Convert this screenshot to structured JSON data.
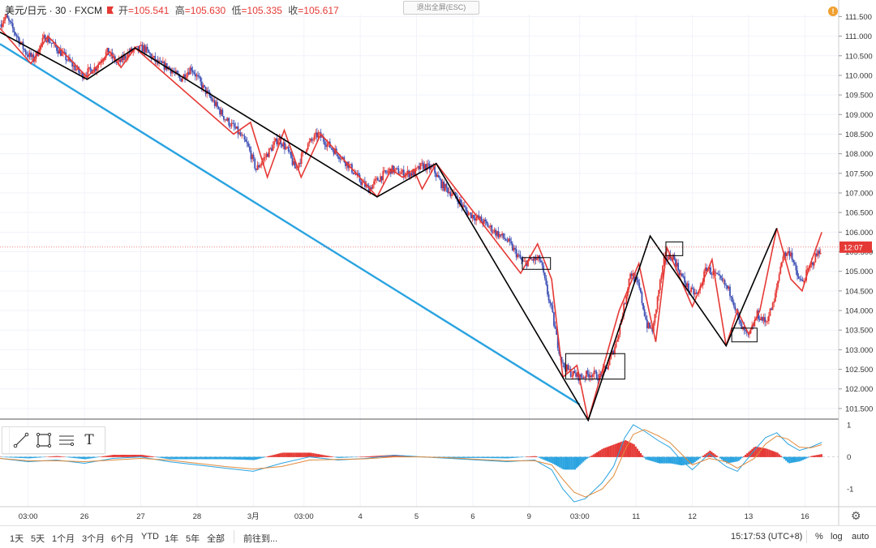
{
  "header": {
    "symbol": "美元/日元 · 30 · FXCM",
    "open_label": "开",
    "open": "=105.541",
    "high_label": "高",
    "high": "=105.630",
    "low_label": "低",
    "low": "=105.335",
    "close_label": "收",
    "close": "=105.617"
  },
  "exit_fullscreen_label": "退出全屏(ESC)",
  "alert_icon_text": "!",
  "price_tag": "12:07",
  "colors": {
    "bull": "#e53935",
    "bear": "#3f51b5",
    "trend": "#29a3e0",
    "wave": "#000000",
    "subwave": "#e53935"
  },
  "chart_data": {
    "type": "candlestick",
    "y_axis": {
      "min": 101.25,
      "max": 111.55,
      "ticks": [
        "111.500",
        "111.000",
        "110.500",
        "110.000",
        "109.500",
        "109.000",
        "108.500",
        "108.000",
        "107.500",
        "107.000",
        "106.500",
        "106.000",
        "105.500",
        "105.000",
        "104.500",
        "104.000",
        "103.500",
        "103.000",
        "102.500",
        "102.000",
        "101.500"
      ]
    },
    "x_axis": {
      "ticks": [
        {
          "label": "03:00",
          "pos": 0.5
        },
        {
          "label": "26",
          "pos": 1.5
        },
        {
          "label": "27",
          "pos": 2.5
        },
        {
          "label": "28",
          "pos": 3.5
        },
        {
          "label": "3月",
          "pos": 4.5
        },
        {
          "label": "03:00",
          "pos": 5.4
        },
        {
          "label": "4",
          "pos": 6.4
        },
        {
          "label": "5",
          "pos": 7.4
        },
        {
          "label": "6",
          "pos": 8.4
        },
        {
          "label": "9",
          "pos": 9.4
        },
        {
          "label": "03:00",
          "pos": 10.3
        },
        {
          "label": "11",
          "pos": 11.3
        },
        {
          "label": "12",
          "pos": 12.3
        },
        {
          "label": "13",
          "pos": 13.3
        },
        {
          "label": "16",
          "pos": 14.3
        }
      ]
    },
    "x_max": 14.9,
    "last_price": 105.617,
    "price_path": [
      [
        0.0,
        111.3
      ],
      [
        0.1,
        111.5
      ],
      [
        0.3,
        111.0
      ],
      [
        0.45,
        110.6
      ],
      [
        0.6,
        110.4
      ],
      [
        0.8,
        111.0
      ],
      [
        1.0,
        110.7
      ],
      [
        1.2,
        110.4
      ],
      [
        1.45,
        110.0
      ],
      [
        1.7,
        110.2
      ],
      [
        1.9,
        110.6
      ],
      [
        2.1,
        110.3
      ],
      [
        2.3,
        110.6
      ],
      [
        2.55,
        110.7
      ],
      [
        2.8,
        110.3
      ],
      [
        3.0,
        110.2
      ],
      [
        3.2,
        109.9
      ],
      [
        3.4,
        110.2
      ],
      [
        3.6,
        109.7
      ],
      [
        3.8,
        109.3
      ],
      [
        4.0,
        108.9
      ],
      [
        4.2,
        108.6
      ],
      [
        4.4,
        108.2
      ],
      [
        4.55,
        107.6
      ],
      [
        4.75,
        108.0
      ],
      [
        4.95,
        108.4
      ],
      [
        5.1,
        108.1
      ],
      [
        5.25,
        107.6
      ],
      [
        5.45,
        108.2
      ],
      [
        5.65,
        108.5
      ],
      [
        5.85,
        108.2
      ],
      [
        6.0,
        108.0
      ],
      [
        6.2,
        107.7
      ],
      [
        6.4,
        107.3
      ],
      [
        6.55,
        107.1
      ],
      [
        6.75,
        107.4
      ],
      [
        6.95,
        107.6
      ],
      [
        7.15,
        107.5
      ],
      [
        7.35,
        107.5
      ],
      [
        7.5,
        107.7
      ],
      [
        7.7,
        107.6
      ],
      [
        7.85,
        107.2
      ],
      [
        8.1,
        106.9
      ],
      [
        8.3,
        106.5
      ],
      [
        8.55,
        106.3
      ],
      [
        8.8,
        106.0
      ],
      [
        9.0,
        105.8
      ],
      [
        9.15,
        105.5
      ],
      [
        9.3,
        105.2
      ],
      [
        9.45,
        105.3
      ],
      [
        9.6,
        105.3
      ],
      [
        9.7,
        104.6
      ],
      [
        9.8,
        104.0
      ],
      [
        9.9,
        103.2
      ],
      [
        10.0,
        102.6
      ],
      [
        10.15,
        102.4
      ],
      [
        10.3,
        102.3
      ],
      [
        10.5,
        102.4
      ],
      [
        10.65,
        102.3
      ],
      [
        10.8,
        102.6
      ],
      [
        10.95,
        103.2
      ],
      [
        11.1,
        104.2
      ],
      [
        11.2,
        105.0
      ],
      [
        11.35,
        104.6
      ],
      [
        11.5,
        103.6
      ],
      [
        11.6,
        103.5
      ],
      [
        11.7,
        104.5
      ],
      [
        11.8,
        105.3
      ],
      [
        11.95,
        105.4
      ],
      [
        12.1,
        104.9
      ],
      [
        12.25,
        104.5
      ],
      [
        12.4,
        104.4
      ],
      [
        12.55,
        105.1
      ],
      [
        12.7,
        104.9
      ],
      [
        12.85,
        104.7
      ],
      [
        13.0,
        104.4
      ],
      [
        13.15,
        103.6
      ],
      [
        13.3,
        103.3
      ],
      [
        13.45,
        103.9
      ],
      [
        13.6,
        103.7
      ],
      [
        13.75,
        104.2
      ],
      [
        13.9,
        105.4
      ],
      [
        14.05,
        105.5
      ],
      [
        14.15,
        104.9
      ],
      [
        14.25,
        104.7
      ],
      [
        14.35,
        105.0
      ],
      [
        14.5,
        105.4
      ],
      [
        14.6,
        105.62
      ]
    ],
    "trend_line": [
      [
        0.0,
        110.8
      ],
      [
        10.3,
        101.6
      ]
    ],
    "wave_lines": [
      [
        0.0,
        111.1
      ],
      [
        1.55,
        109.9
      ],
      [
        2.4,
        110.7
      ],
      [
        6.7,
        106.9
      ],
      [
        7.75,
        107.75
      ],
      [
        10.45,
        101.2
      ],
      [
        11.55,
        105.9
      ],
      [
        12.9,
        103.1
      ],
      [
        13.8,
        106.1
      ]
    ],
    "sub_wave_lines": [
      [
        0.0,
        111.2
      ],
      [
        0.55,
        110.3
      ],
      [
        0.85,
        111.0
      ],
      [
        1.55,
        109.95
      ],
      [
        1.95,
        110.6
      ],
      [
        2.15,
        110.2
      ],
      [
        2.4,
        110.7
      ],
      [
        4.15,
        108.5
      ],
      [
        4.45,
        108.8
      ],
      [
        4.75,
        107.4
      ],
      [
        5.05,
        108.6
      ],
      [
        5.35,
        107.4
      ],
      [
        5.7,
        108.5
      ],
      [
        6.7,
        106.9
      ],
      [
        6.95,
        107.6
      ],
      [
        7.15,
        107.4
      ],
      [
        7.35,
        107.6
      ],
      [
        7.5,
        107.1
      ],
      [
        7.75,
        107.75
      ],
      [
        9.25,
        104.95
      ],
      [
        9.55,
        105.7
      ],
      [
        9.8,
        104.8
      ],
      [
        10.0,
        102.3
      ],
      [
        10.25,
        102.6
      ],
      [
        10.45,
        101.2
      ],
      [
        11.0,
        104.0
      ],
      [
        11.35,
        105.2
      ],
      [
        11.65,
        103.2
      ],
      [
        11.85,
        105.6
      ],
      [
        12.3,
        104.1
      ],
      [
        12.65,
        105.3
      ],
      [
        12.9,
        103.1
      ],
      [
        13.1,
        104.0
      ],
      [
        13.3,
        103.4
      ],
      [
        13.5,
        104.0
      ],
      [
        13.8,
        106.1
      ],
      [
        14.05,
        104.8
      ],
      [
        14.25,
        104.5
      ],
      [
        14.4,
        105.2
      ],
      [
        14.6,
        106.0
      ]
    ],
    "boxes": [
      {
        "x0": 9.28,
        "x1": 9.78,
        "y0": 105.05,
        "y1": 105.35
      },
      {
        "x0": 10.05,
        "x1": 11.1,
        "y0": 102.25,
        "y1": 102.9
      },
      {
        "x0": 11.83,
        "x1": 12.13,
        "y0": 105.4,
        "y1": 105.75
      },
      {
        "x0": 13.0,
        "x1": 13.45,
        "y0": 103.2,
        "y1": 103.55
      }
    ],
    "indicator": {
      "y_ticks": [
        "1",
        "0",
        "-1"
      ],
      "y_min": -1.55,
      "y_max": 1.15,
      "macd": [
        [
          0.0,
          -0.05
        ],
        [
          0.5,
          -0.15
        ],
        [
          1.0,
          -0.1
        ],
        [
          1.5,
          -0.2
        ],
        [
          2.0,
          -0.05
        ],
        [
          2.5,
          0.0
        ],
        [
          3.0,
          -0.15
        ],
        [
          3.5,
          -0.25
        ],
        [
          4.0,
          -0.35
        ],
        [
          4.5,
          -0.45
        ],
        [
          5.0,
          -0.2
        ],
        [
          5.5,
          0.0
        ],
        [
          6.0,
          -0.1
        ],
        [
          6.5,
          -0.05
        ],
        [
          7.0,
          0.05
        ],
        [
          7.5,
          0.0
        ],
        [
          8.0,
          -0.05
        ],
        [
          8.5,
          -0.1
        ],
        [
          9.0,
          -0.15
        ],
        [
          9.5,
          -0.1
        ],
        [
          9.8,
          -0.4
        ],
        [
          10.0,
          -1.0
        ],
        [
          10.2,
          -1.4
        ],
        [
          10.4,
          -1.3
        ],
        [
          10.7,
          -0.8
        ],
        [
          10.9,
          -0.3
        ],
        [
          11.1,
          0.6
        ],
        [
          11.25,
          1.0
        ],
        [
          11.45,
          0.8
        ],
        [
          11.7,
          0.5
        ],
        [
          11.9,
          0.3
        ],
        [
          12.1,
          -0.1
        ],
        [
          12.3,
          -0.4
        ],
        [
          12.6,
          0.1
        ],
        [
          12.9,
          -0.3
        ],
        [
          13.1,
          -0.45
        ],
        [
          13.4,
          0.2
        ],
        [
          13.6,
          0.6
        ],
        [
          13.8,
          0.75
        ],
        [
          14.0,
          0.4
        ],
        [
          14.2,
          0.2
        ],
        [
          14.4,
          0.3
        ],
        [
          14.6,
          0.45
        ]
      ],
      "signal": [
        [
          0.0,
          -0.05
        ],
        [
          0.5,
          -0.12
        ],
        [
          1.0,
          -0.12
        ],
        [
          1.5,
          -0.15
        ],
        [
          2.0,
          -0.1
        ],
        [
          2.5,
          -0.05
        ],
        [
          3.0,
          -0.1
        ],
        [
          3.5,
          -0.2
        ],
        [
          4.0,
          -0.3
        ],
        [
          4.5,
          -0.38
        ],
        [
          5.0,
          -0.3
        ],
        [
          5.5,
          -0.1
        ],
        [
          6.0,
          -0.08
        ],
        [
          6.5,
          -0.06
        ],
        [
          7.0,
          0.0
        ],
        [
          7.5,
          0.0
        ],
        [
          8.0,
          -0.03
        ],
        [
          8.5,
          -0.08
        ],
        [
          9.0,
          -0.12
        ],
        [
          9.5,
          -0.12
        ],
        [
          9.8,
          -0.25
        ],
        [
          10.0,
          -0.7
        ],
        [
          10.2,
          -1.1
        ],
        [
          10.4,
          -1.25
        ],
        [
          10.7,
          -1.0
        ],
        [
          10.9,
          -0.6
        ],
        [
          11.1,
          0.2
        ],
        [
          11.25,
          0.7
        ],
        [
          11.45,
          0.85
        ],
        [
          11.7,
          0.65
        ],
        [
          11.9,
          0.45
        ],
        [
          12.1,
          0.1
        ],
        [
          12.3,
          -0.25
        ],
        [
          12.6,
          -0.05
        ],
        [
          12.9,
          -0.15
        ],
        [
          13.1,
          -0.35
        ],
        [
          13.4,
          -0.05
        ],
        [
          13.6,
          0.4
        ],
        [
          13.8,
          0.65
        ],
        [
          14.0,
          0.55
        ],
        [
          14.2,
          0.3
        ],
        [
          14.4,
          0.28
        ],
        [
          14.6,
          0.38
        ]
      ]
    }
  },
  "toolbar": {
    "tools": [
      "trend-line-tool",
      "rectangle-tool",
      "fib-tool",
      "text-tool"
    ],
    "text_tool_glyph": "T"
  },
  "bottom_bar": {
    "ranges": [
      "1天",
      "5天",
      "1个月",
      "3个月",
      "6个月",
      "YTD",
      "1年",
      "5年",
      "全部"
    ],
    "goto": "前往到...",
    "clock": "15:17:53 (UTC+8)",
    "percent": "%",
    "log": "log",
    "auto": "auto"
  }
}
